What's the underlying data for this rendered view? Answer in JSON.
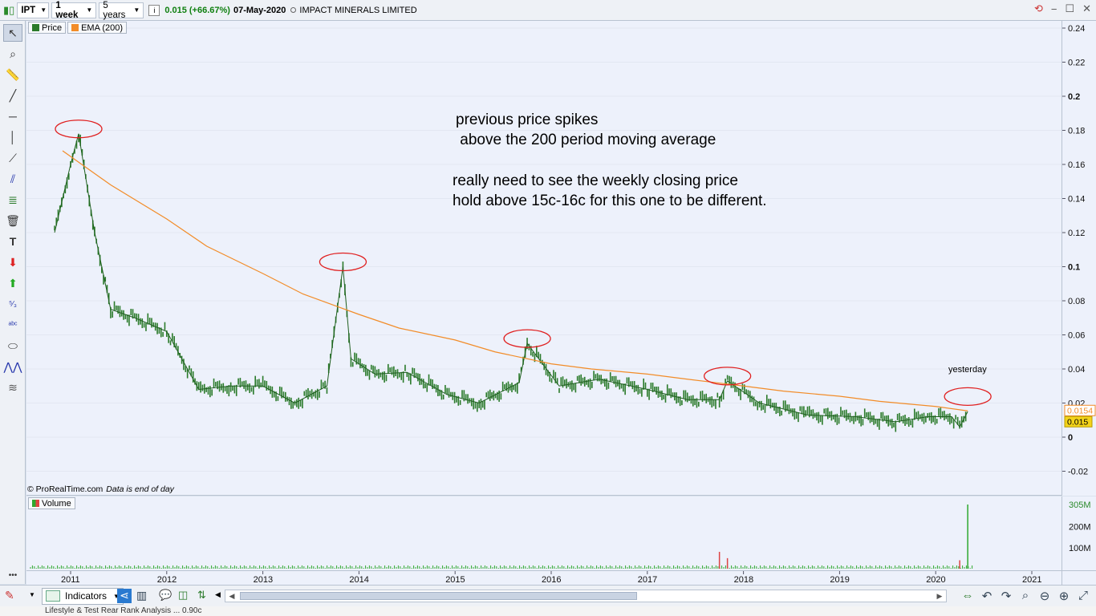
{
  "toolbar": {
    "symbol": "IPT",
    "period": "1 week",
    "range": "5 years",
    "info_glyph": "i",
    "change": "0.015 (+66.67%)",
    "date": "07-May-2020",
    "company": "IMPACT MINERALS LIMITED"
  },
  "legend": {
    "price": "Price",
    "ema": "EMA (200)",
    "volume": "Volume"
  },
  "credit": {
    "source": "© ProRealTime.com",
    "note": "Data is end of day"
  },
  "annotations": {
    "line1": "previous price spikes",
    "line2": " above the 200 period moving average",
    "line3": "really need to see the weekly closing price",
    "line4": "hold above 15c-16c for this one to be different.",
    "yesterday": "yesterday"
  },
  "price_axis": {
    "ticks": [
      "0.24",
      "0.22",
      "0.2",
      "0.18",
      "0.16",
      "0.14",
      "0.12",
      "0.1",
      "0.08",
      "0.06",
      "0.04",
      "0.02",
      "0",
      "-0.02"
    ],
    "ema_label": "0.0154",
    "price_label": "0.015"
  },
  "volume_axis": {
    "ticks": [
      "305M",
      "200M",
      "100M"
    ]
  },
  "date_axis": {
    "ticks": [
      "2011",
      "2012",
      "2013",
      "2014",
      "2015",
      "2016",
      "2017",
      "2018",
      "2019",
      "2020",
      "2021"
    ]
  },
  "bottom": {
    "indicators_label": "Indicators"
  },
  "taskbar": {
    "text": "Lifestyle &     Test           Rear Rank Analysis   ...   0.90c"
  },
  "colors": {
    "price_bar": "#2a7a2a",
    "ema_line": "#f28c28",
    "spike_circle": "#e02020",
    "volume_bar": "#2ea82e",
    "volume_spike": "#d44"
  },
  "chart_data": {
    "type": "line",
    "title": "",
    "ylim": [
      -0.02,
      0.24
    ],
    "x_range": [
      "2010-11",
      "2021-03"
    ],
    "series": [
      {
        "name": "Price",
        "x": [
          "2010-11",
          "2011-01",
          "2011-02",
          "2011-04",
          "2011-06",
          "2011-09",
          "2012-01",
          "2012-05",
          "2012-09",
          "2013-01",
          "2013-05",
          "2013-09",
          "2013-11",
          "2013-12",
          "2014-03",
          "2014-07",
          "2014-12",
          "2015-04",
          "2015-09",
          "2015-10",
          "2016-02",
          "2016-07",
          "2017-01",
          "2017-06",
          "2017-10",
          "2017-11",
          "2018-03",
          "2018-09",
          "2019-03",
          "2019-08",
          "2019-12",
          "2020-03",
          "2020-04",
          "2020-05"
        ],
        "values": [
          0.12,
          0.16,
          0.178,
          0.12,
          0.075,
          0.07,
          0.062,
          0.028,
          0.03,
          0.03,
          0.02,
          0.03,
          0.1,
          0.046,
          0.037,
          0.038,
          0.025,
          0.02,
          0.032,
          0.055,
          0.03,
          0.034,
          0.028,
          0.022,
          0.022,
          0.033,
          0.02,
          0.013,
          0.012,
          0.009,
          0.012,
          0.012,
          0.006,
          0.015
        ]
      },
      {
        "name": "EMA (200)",
        "x": [
          "2010-12",
          "2011-06",
          "2012-01",
          "2012-06",
          "2013-01",
          "2013-06",
          "2014-01",
          "2014-06",
          "2015-01",
          "2015-06",
          "2016-01",
          "2016-06",
          "2017-01",
          "2017-06",
          "2018-01",
          "2018-06",
          "2019-01",
          "2019-06",
          "2020-01",
          "2020-05"
        ],
        "values": [
          0.168,
          0.148,
          0.128,
          0.112,
          0.096,
          0.084,
          0.072,
          0.064,
          0.057,
          0.05,
          0.043,
          0.04,
          0.037,
          0.034,
          0.03,
          0.027,
          0.024,
          0.021,
          0.018,
          0.0154
        ]
      }
    ],
    "volume": {
      "ticks": [
        "305M",
        "200M",
        "100M"
      ],
      "spikes": [
        {
          "x": "2017-10",
          "value": 80
        },
        {
          "x": "2017-11",
          "value": 50
        },
        {
          "x": "2020-04",
          "value": 40
        },
        {
          "x": "2020-05",
          "value": 305
        }
      ]
    }
  }
}
